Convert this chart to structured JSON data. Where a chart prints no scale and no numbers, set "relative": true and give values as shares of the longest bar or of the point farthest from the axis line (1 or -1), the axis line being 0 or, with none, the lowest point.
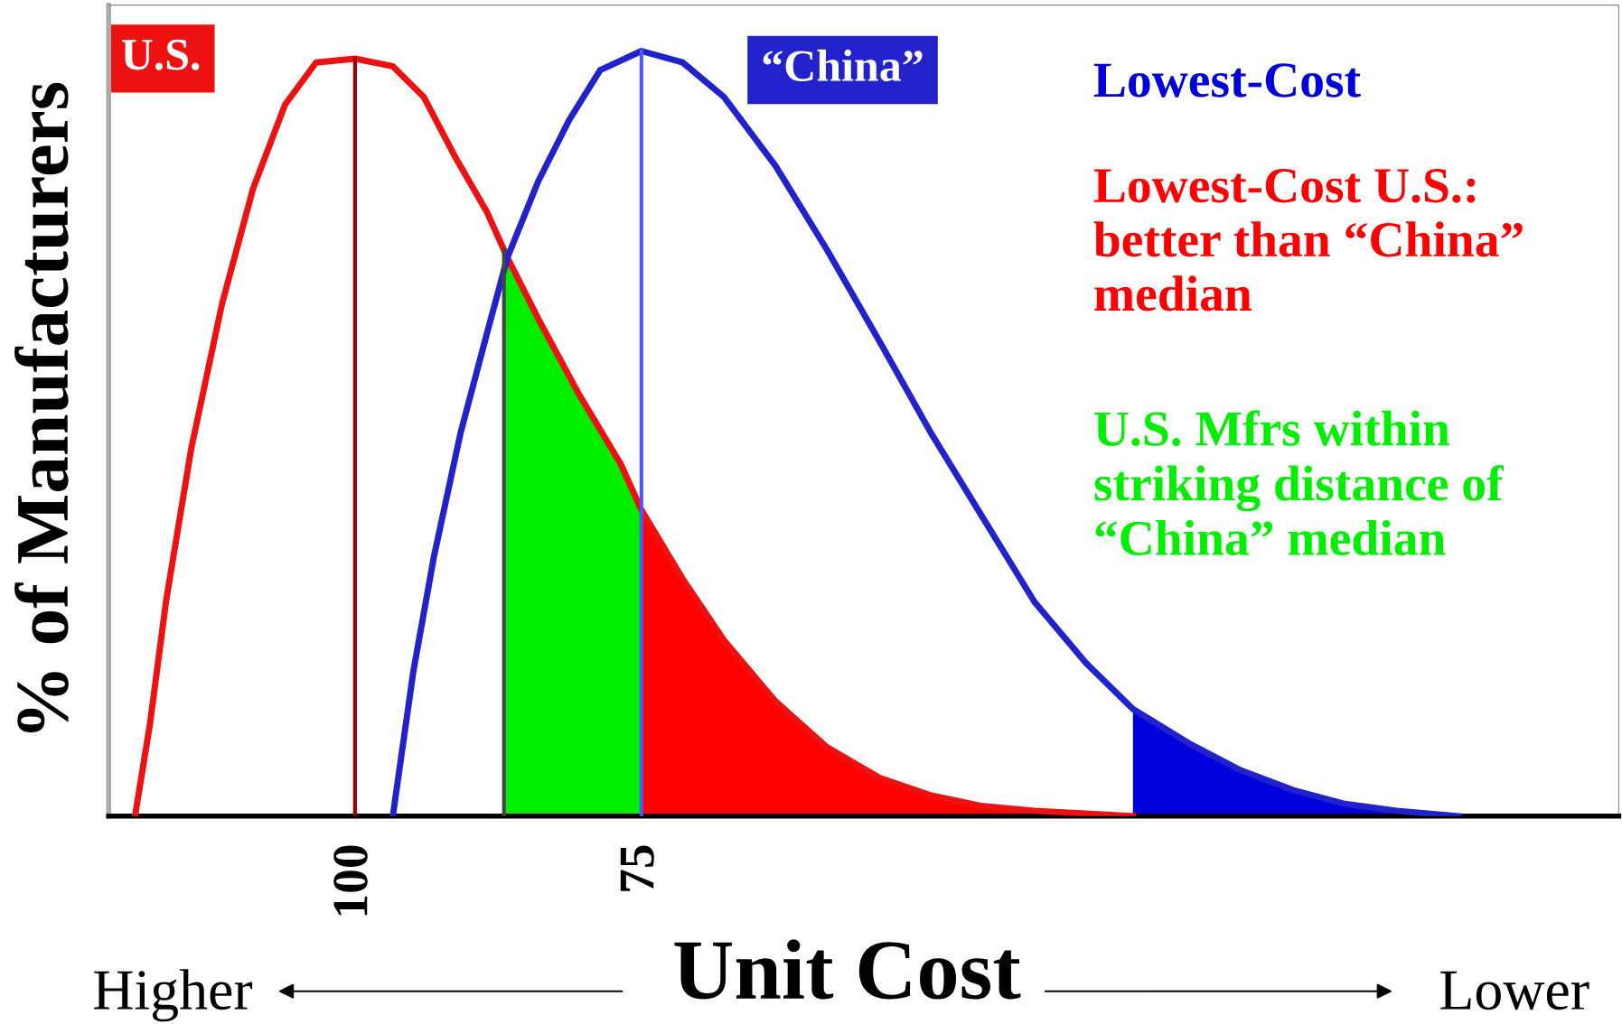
{
  "chart_data": {
    "type": "line",
    "relative": true,
    "xlabel": "Unit Cost",
    "ylabel": "% of Manufacturers",
    "xlim": [
      121.5,
      -10.3
    ],
    "xticks": [
      100,
      75
    ],
    "tick_labels": "x",
    "grid": false,
    "legend": false,
    "annotations": [
      "Higher",
      "Lower"
    ],
    "series": [
      {
        "type": "area",
        "name": "Lowest-Cost",
        "color": "#0000dd",
        "x": [
          32.1,
          27.2,
          22.7,
          18.1,
          13.6,
          9.1,
          3.7
        ],
        "values": [
          0.14,
          0.095,
          0.06,
          0.034,
          0.016,
          0.007,
          0.0
        ]
      },
      {
        "type": "area",
        "name": "Lowest-Cost U.S.:\nbetter than “China”\nmedian",
        "color": "#ff0000",
        "x": [
          75.0,
          71.4,
          67.8,
          63.3,
          58.8,
          54.2,
          49.7,
          45.2,
          40.7,
          32.1
        ],
        "values": [
          0.4,
          0.31,
          0.23,
          0.15,
          0.09,
          0.05,
          0.027,
          0.013,
          0.007,
          0.0
        ]
      },
      {
        "type": "area",
        "name": "U.S. Mfrs within\nstriking distance of\n“China” median",
        "color": "#00ee00",
        "x": [
          87.0,
          84.0,
          80.4,
          76.8,
          75.0
        ],
        "values": [
          0.74,
          0.65,
          0.55,
          0.46,
          0.4
        ]
      },
      {
        "name": "U.S.",
        "color": "#ee1111",
        "x": [
          119.2,
          117.9,
          116.5,
          114.3,
          111.6,
          108.9,
          106.1,
          103.4,
          100,
          96.7,
          94.0,
          91.2,
          88.5,
          86.7,
          84.0,
          80.4,
          76.8,
          75.0,
          71.4,
          67.8,
          63.3,
          58.8,
          54.2,
          49.7,
          45.2,
          40.7,
          32.1
        ],
        "values": [
          0,
          0.12,
          0.28,
          0.48,
          0.67,
          0.82,
          0.93,
          0.985,
          0.99,
          0.98,
          0.94,
          0.86,
          0.79,
          0.73,
          0.65,
          0.55,
          0.46,
          0.4,
          0.31,
          0.23,
          0.15,
          0.09,
          0.05,
          0.027,
          0.013,
          0.007,
          0.0
        ]
      },
      {
        "name": "“China”",
        "color": "#2222cc",
        "x": [
          96.7,
          94.9,
          93.1,
          90.8,
          88.5,
          86.7,
          84.0,
          81.3,
          78.6,
          75.0,
          71.4,
          67.8,
          63.3,
          58.8,
          54.2,
          49.7,
          45.2,
          40.7,
          36.2,
          32.1,
          27.2,
          22.7,
          18.1,
          13.6,
          9.1,
          3.7
        ],
        "values": [
          0,
          0.19,
          0.34,
          0.5,
          0.63,
          0.73,
          0.83,
          0.91,
          0.975,
          1.0,
          0.985,
          0.94,
          0.85,
          0.74,
          0.62,
          0.5,
          0.39,
          0.28,
          0.2,
          0.14,
          0.095,
          0.06,
          0.034,
          0.016,
          0.007,
          0.0
        ]
      },
      {
        "color": "#990000",
        "x": [
          100,
          100
        ],
        "values": [
          0,
          0.99
        ]
      },
      {
        "color": "#5555ff",
        "x": [
          75,
          75
        ],
        "values": [
          0,
          1.0
        ]
      },
      {
        "color": "#444444",
        "x": [
          87.0,
          87.0
        ],
        "values": [
          0,
          0.74
        ]
      }
    ]
  }
}
